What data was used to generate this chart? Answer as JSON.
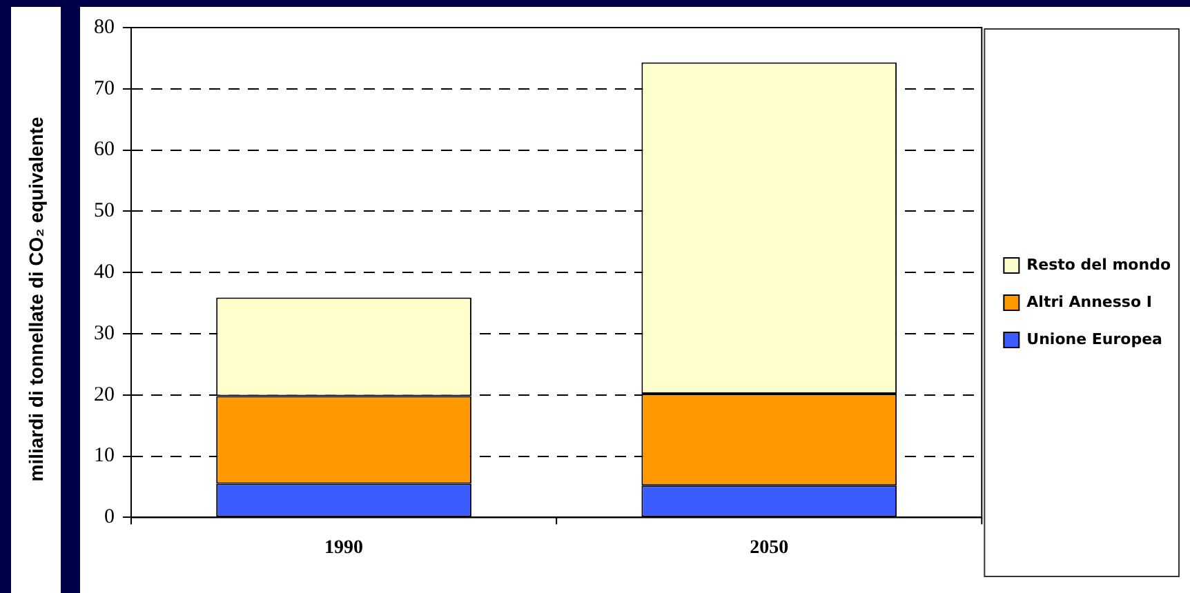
{
  "chart_data": {
    "type": "bar",
    "ylabel": "miliardi di tonnellate di CO₂ equivalente",
    "categories": [
      "1990",
      "2050"
    ],
    "stacked": true,
    "series": [
      {
        "name": "Unione Europea",
        "color": "#3b5cff",
        "values": [
          5.5,
          5.2
        ]
      },
      {
        "name": "Altri Annesso I",
        "color": "#ff9900",
        "values": [
          14.3,
          15.0
        ]
      },
      {
        "name": "Resto del mondo",
        "color": "#ffffcc",
        "values": [
          16.1,
          54.1
        ]
      }
    ],
    "ylim": [
      0,
      80
    ],
    "yticks": [
      0,
      10,
      20,
      30,
      40,
      50,
      60,
      70,
      80
    ],
    "grid": "y",
    "legend": "right"
  }
}
